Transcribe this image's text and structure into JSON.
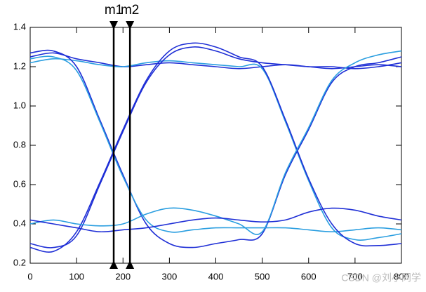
{
  "chart_data": {
    "type": "line",
    "x": [
      0,
      50,
      100,
      150,
      200,
      250,
      300,
      350,
      400,
      450,
      500,
      550,
      600,
      650,
      700,
      750,
      800
    ],
    "series": [
      {
        "color": "#1f2fd6",
        "values": [
          1.25,
          1.27,
          1.24,
          1.22,
          1.2,
          1.21,
          1.22,
          1.21,
          1.2,
          1.19,
          1.2,
          1.21,
          1.2,
          1.19,
          1.2,
          1.21,
          1.2
        ]
      },
      {
        "color": "#2a9ee0",
        "values": [
          1.22,
          1.24,
          1.23,
          1.21,
          1.2,
          1.22,
          1.23,
          1.22,
          1.21,
          1.2,
          1.19,
          0.92,
          0.62,
          0.38,
          0.32,
          0.33,
          0.35
        ]
      },
      {
        "color": "#1f2fd6",
        "values": [
          1.27,
          1.28,
          1.2,
          0.93,
          0.65,
          0.4,
          0.3,
          0.28,
          0.3,
          0.32,
          0.35,
          0.65,
          0.88,
          1.12,
          1.2,
          1.22,
          1.25
        ]
      },
      {
        "color": "#2a9ee0",
        "values": [
          1.24,
          1.25,
          1.18,
          0.92,
          0.64,
          0.42,
          0.36,
          0.37,
          0.38,
          0.38,
          0.38,
          0.38,
          0.37,
          0.36,
          0.37,
          0.38,
          0.37
        ]
      },
      {
        "color": "#1f2fd6",
        "values": [
          0.3,
          0.28,
          0.34,
          0.6,
          0.87,
          1.12,
          1.26,
          1.3,
          1.28,
          1.24,
          1.22,
          1.21,
          1.2,
          1.2,
          1.19,
          1.2,
          1.22
        ]
      },
      {
        "color": "#1f2fd6",
        "values": [
          0.28,
          0.26,
          0.36,
          0.61,
          0.88,
          1.13,
          1.28,
          1.32,
          1.3,
          1.25,
          1.2,
          0.93,
          0.63,
          0.4,
          0.3,
          0.29,
          0.3
        ]
      },
      {
        "color": "#2a9ee0",
        "values": [
          0.4,
          0.42,
          0.4,
          0.39,
          0.4,
          0.45,
          0.48,
          0.47,
          0.44,
          0.4,
          0.36,
          0.66,
          0.89,
          1.13,
          1.22,
          1.26,
          1.28
        ]
      },
      {
        "color": "#1f2fd6",
        "values": [
          0.42,
          0.4,
          0.38,
          0.36,
          0.37,
          0.38,
          0.4,
          0.42,
          0.43,
          0.42,
          0.41,
          0.42,
          0.46,
          0.48,
          0.47,
          0.44,
          0.42
        ]
      }
    ],
    "xlim": [
      0,
      800
    ],
    "xticks": [
      0,
      100,
      200,
      300,
      400,
      500,
      600,
      700,
      800
    ],
    "ylim": [
      0.2,
      1.4
    ],
    "yticks": [
      0.2,
      0.4,
      0.6,
      0.8,
      {
        "value": 1,
        "label": "1.0"
      },
      1.2,
      1.4
    ],
    "markers": [
      {
        "name": "m1",
        "x": 180
      },
      {
        "name": "m2",
        "x": 215
      }
    ],
    "watermark": "CSDN @刘小同学"
  }
}
